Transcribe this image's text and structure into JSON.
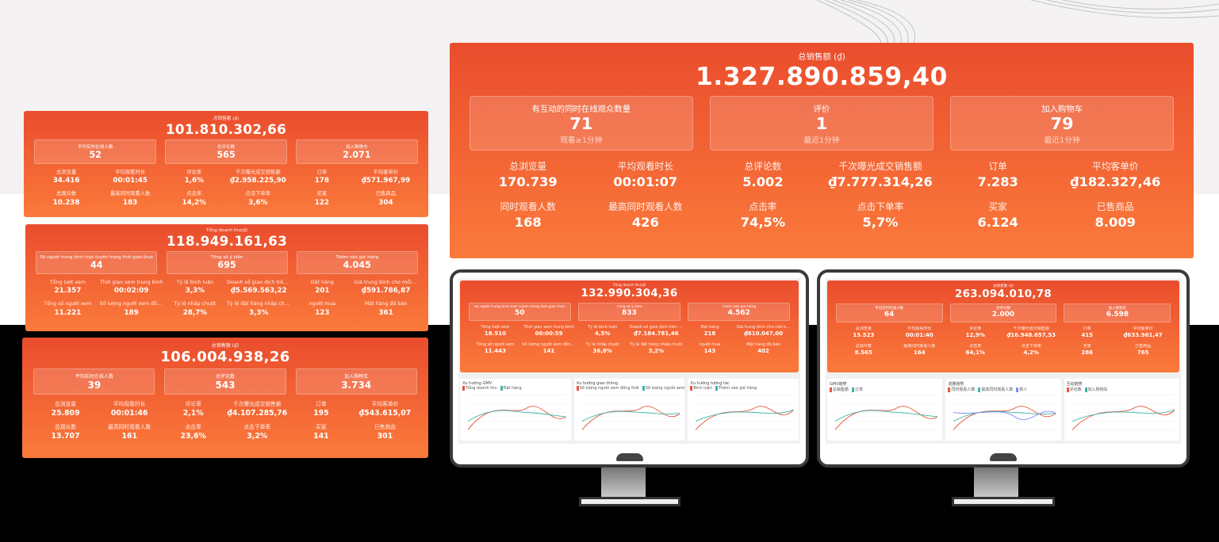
{
  "panels": [
    {
      "title": "总销售额 (₫)",
      "total": "101.810.302,66",
      "highlights": [
        {
          "label": "平均实时在线人数",
          "value": "52"
        },
        {
          "label": "总评论数",
          "value": "565"
        },
        {
          "label": "加入购物车",
          "value": "2.071"
        }
      ],
      "stats": [
        {
          "label": "总浏览量",
          "value": "34.416"
        },
        {
          "label": "平均观看时长",
          "value": "00:01:45"
        },
        {
          "label": "评论率",
          "value": "1,6%"
        },
        {
          "label": "千次曝光成交销售额",
          "value": "₫2.958.225,90"
        },
        {
          "label": "订单",
          "value": "178"
        },
        {
          "label": "平均客单价",
          "value": "₫571.967,99"
        },
        {
          "label": "总观众数",
          "value": "10.238"
        },
        {
          "label": "最高同时观看人数",
          "value": "183"
        },
        {
          "label": "点击率",
          "value": "14,2%"
        },
        {
          "label": "点击下单率",
          "value": "3,6%"
        },
        {
          "label": "买家",
          "value": "122"
        },
        {
          "label": "已售商品",
          "value": "304"
        }
      ]
    },
    {
      "title": "Tổng doanh thu(₫)",
      "total": "118.949.161,63",
      "highlights": [
        {
          "label": "Số người trung bình trực tuyến trong thời gian thực",
          "value": "44"
        },
        {
          "label": "Tổng số ý kiến",
          "value": "695"
        },
        {
          "label": "Thêm vào giỏ hàng",
          "value": "4.045"
        }
      ],
      "stats": [
        {
          "label": "Tổng lượt xem",
          "value": "21.357"
        },
        {
          "label": "Thời gian xem trung bình",
          "value": "00:02:09"
        },
        {
          "label": "Tỷ lệ bình luận",
          "value": "3,3%"
        },
        {
          "label": "Doanh số giao dịch trên mỗi ng...",
          "value": "₫5.569.563,22"
        },
        {
          "label": "Đặt hàng",
          "value": "201"
        },
        {
          "label": "Giá trung bình cho mỗi khách ...",
          "value": "₫591.786,87"
        },
        {
          "label": "Tổng số người xem",
          "value": "11.221"
        },
        {
          "label": "Số lượng người xem đồng thời...",
          "value": "189"
        },
        {
          "label": "Tỷ lệ nhấp chuột",
          "value": "28,7%"
        },
        {
          "label": "Tỷ lệ đặt hàng nhấp chuột",
          "value": "3,3%"
        },
        {
          "label": "người mua",
          "value": "123"
        },
        {
          "label": "Mặt hàng đã bán",
          "value": "361"
        }
      ]
    },
    {
      "title": "总销售额 (₫)",
      "total": "106.004.938,26",
      "highlights": [
        {
          "label": "平均实时在线人数",
          "value": "39"
        },
        {
          "label": "总评论数",
          "value": "543"
        },
        {
          "label": "加入购物车",
          "value": "3.734"
        }
      ],
      "stats": [
        {
          "label": "总浏览量",
          "value": "25.809"
        },
        {
          "label": "平均观看时长",
          "value": "00:01:46"
        },
        {
          "label": "评论率",
          "value": "2,1%"
        },
        {
          "label": "千次曝光成交销售额",
          "value": "₫4.107.285,76"
        },
        {
          "label": "订单",
          "value": "195"
        },
        {
          "label": "平均客单价",
          "value": "₫543.615,07"
        },
        {
          "label": "总观众数",
          "value": "13.707"
        },
        {
          "label": "最高同时观看人数",
          "value": "161"
        },
        {
          "label": "点击率",
          "value": "23,6%"
        },
        {
          "label": "点击下单率",
          "value": "3,2%"
        },
        {
          "label": "买家",
          "value": "141"
        },
        {
          "label": "已售商品",
          "value": "301"
        }
      ]
    },
    {
      "title": "总销售额 (₫)",
      "total": "1.327.890.859,40",
      "highlights": [
        {
          "label": "有互动的同时在线观众数量",
          "value": "71",
          "note": "观看≥1分钟"
        },
        {
          "label": "评价",
          "value": "1",
          "note": "最近1分钟"
        },
        {
          "label": "加入购物车",
          "value": "79",
          "note": "最近1分钟"
        }
      ],
      "stats": [
        {
          "label": "总浏览量",
          "value": "170.739"
        },
        {
          "label": "平均观看时长",
          "value": "00:01:07"
        },
        {
          "label": "总评论数",
          "value": "5.002"
        },
        {
          "label": "千次曝光成交销售额",
          "value": "₫7.777.314,26"
        },
        {
          "label": "订单",
          "value": "7.283"
        },
        {
          "label": "平均客单价",
          "value": "₫182.327,46"
        },
        {
          "label": "同时观看人数",
          "value": "168"
        },
        {
          "label": "最高同时观看人数",
          "value": "426"
        },
        {
          "label": "点击率",
          "value": "74,5%"
        },
        {
          "label": "点击下单率",
          "value": "5,7%"
        },
        {
          "label": "买家",
          "value": "6.124"
        },
        {
          "label": "已售商品",
          "value": "8.009"
        }
      ]
    },
    {
      "title": "Tổng doanh thu(₫)",
      "total": "132.990.304,36",
      "highlights": [
        {
          "label": "Số người trung bình trực tuyến trong thời gian thực",
          "value": "50"
        },
        {
          "label": "Tổng số ý kiến",
          "value": "833"
        },
        {
          "label": "Thêm vào giỏ hàng",
          "value": "4.562"
        }
      ],
      "stats": [
        {
          "label": "Tổng lượt xem",
          "value": "18.510"
        },
        {
          "label": "Thời gian xem trung bình",
          "value": "00:00:59"
        },
        {
          "label": "Tỷ lệ bình luận",
          "value": "4,5%"
        },
        {
          "label": "Doanh số giao dịch trên mỗi ng...",
          "value": "₫7.184.781,46"
        },
        {
          "label": "Đặt hàng",
          "value": "218"
        },
        {
          "label": "Giá trung bình cho mỗi khách ...",
          "value": "₫610.047,00"
        },
        {
          "label": "Tổng số người xem",
          "value": "11.443"
        },
        {
          "label": "Số lượng người xem đồng thời...",
          "value": "141"
        },
        {
          "label": "Tỷ lệ nhấp chuột",
          "value": "36,8%"
        },
        {
          "label": "Tỷ lệ đặt hàng nhấp chuột",
          "value": "3,2%"
        },
        {
          "label": "người mua",
          "value": "143"
        },
        {
          "label": "Mặt hàng đã bán",
          "value": "402"
        }
      ],
      "charts": [
        {
          "title": "Xu hướng GMV",
          "legend": [
            "Tổng doanh thu",
            "Đặt hàng"
          ]
        },
        {
          "title": "Xu hướng giao thông",
          "legend": [
            "Số lượng người xem đồng thời",
            "Số lượng người xem trực tuyến mới"
          ]
        },
        {
          "title": "Xu hướng tương tác",
          "legend": [
            "Bình luận",
            "Thêm vào giỏ hàng"
          ]
        }
      ]
    },
    {
      "title": "总销售额 (₫)",
      "total": "263.094.010,78",
      "highlights": [
        {
          "label": "平均实时在线人数",
          "value": "64"
        },
        {
          "label": "总评论数",
          "value": "2.000"
        },
        {
          "label": "加入购物车",
          "value": "6.598"
        }
      ],
      "stats": [
        {
          "label": "总浏览量",
          "value": "15.523"
        },
        {
          "label": "平均观看时长",
          "value": "00:01:40"
        },
        {
          "label": "评论率",
          "value": "12,9%"
        },
        {
          "label": "千次曝光成交销售额",
          "value": "₫16.948.657,53"
        },
        {
          "label": "订单",
          "value": "415"
        },
        {
          "label": "平均客单价",
          "value": "₫633.961,47"
        },
        {
          "label": "总观众数",
          "value": "8.565"
        },
        {
          "label": "最高同时观看人数",
          "value": "164"
        },
        {
          "label": "点击率",
          "value": "64,1%"
        },
        {
          "label": "点击下单率",
          "value": "4,2%"
        },
        {
          "label": "买家",
          "value": "286"
        },
        {
          "label": "已售商品",
          "value": "765"
        }
      ],
      "charts": [
        {
          "title": "GMV趋势",
          "legend": [
            "总销售额",
            "订单"
          ]
        },
        {
          "title": "流量趋势",
          "legend": [
            "同时观看人数",
            "最高同时观看人数",
            "新人"
          ]
        },
        {
          "title": "互动趋势",
          "legend": [
            "评论数",
            "加入购物车"
          ]
        }
      ]
    }
  ]
}
